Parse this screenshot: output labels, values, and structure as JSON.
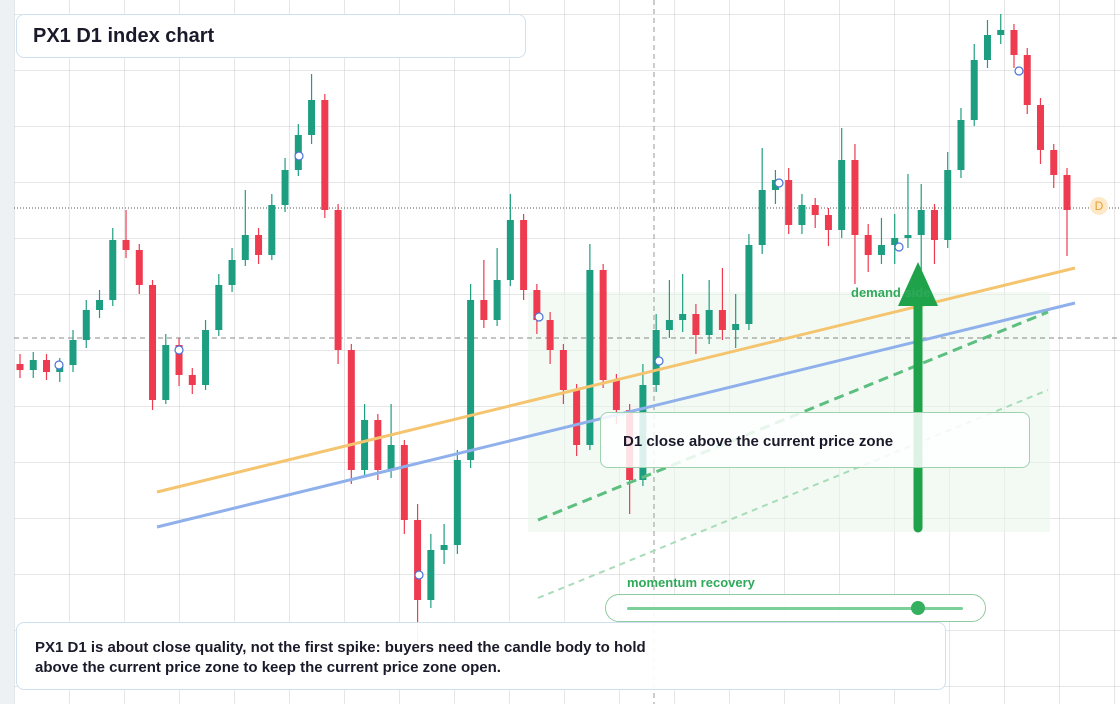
{
  "chart_data": {
    "type": "candlestick",
    "title": "PX1 D1 index chart",
    "callout": "D1 close above the current price zone",
    "zone_label": "demand side",
    "slider_label": "momentum recovery",
    "marker": "D",
    "note": "PX1 D1 is about close quality, not the first spike: buyers need the candle body to hold above the current price zone to keep the current price zone open.",
    "up_color": "#1e9e80",
    "down_color": "#ee3b50",
    "ylim": [
      0,
      704
    ],
    "candles": [
      [
        340,
        350,
        326,
        334
      ],
      [
        334,
        352,
        326,
        344
      ],
      [
        344,
        350,
        324,
        332
      ],
      [
        332,
        346,
        322,
        339
      ],
      [
        339,
        374,
        332,
        364
      ],
      [
        364,
        404,
        356,
        394
      ],
      [
        394,
        414,
        386,
        404
      ],
      [
        404,
        476,
        398,
        464
      ],
      [
        464,
        494,
        446,
        454
      ],
      [
        454,
        460,
        410,
        419
      ],
      [
        419,
        424,
        294,
        304
      ],
      [
        304,
        370,
        300,
        359
      ],
      [
        359,
        366,
        318,
        329
      ],
      [
        329,
        336,
        310,
        319
      ],
      [
        319,
        384,
        314,
        374
      ],
      [
        374,
        430,
        368,
        419
      ],
      [
        419,
        456,
        412,
        444
      ],
      [
        444,
        514,
        438,
        469
      ],
      [
        469,
        476,
        440,
        449
      ],
      [
        449,
        510,
        444,
        499
      ],
      [
        499,
        546,
        492,
        534
      ],
      [
        534,
        580,
        528,
        569
      ],
      [
        569,
        630,
        560,
        604
      ],
      [
        604,
        610,
        486,
        494
      ],
      [
        494,
        500,
        340,
        354
      ],
      [
        354,
        360,
        220,
        234
      ],
      [
        234,
        300,
        228,
        284
      ],
      [
        284,
        290,
        224,
        234
      ],
      [
        234,
        300,
        226,
        259
      ],
      [
        259,
        264,
        170,
        184
      ],
      [
        184,
        200,
        60,
        104
      ],
      [
        104,
        170,
        96,
        154
      ],
      [
        154,
        180,
        140,
        159
      ],
      [
        159,
        254,
        150,
        244
      ],
      [
        244,
        420,
        236,
        404
      ],
      [
        404,
        444,
        376,
        384
      ],
      [
        384,
        456,
        378,
        424
      ],
      [
        424,
        510,
        418,
        484
      ],
      [
        484,
        490,
        404,
        414
      ],
      [
        414,
        420,
        370,
        384
      ],
      [
        384,
        392,
        340,
        354
      ],
      [
        354,
        360,
        300,
        314
      ],
      [
        314,
        320,
        248,
        259
      ],
      [
        259,
        460,
        254,
        434
      ],
      [
        434,
        440,
        316,
        324
      ],
      [
        324,
        330,
        280,
        294
      ],
      [
        294,
        300,
        190,
        224
      ],
      [
        224,
        340,
        218,
        319
      ],
      [
        319,
        390,
        312,
        374
      ],
      [
        374,
        424,
        366,
        384
      ],
      [
        384,
        430,
        372,
        390
      ],
      [
        390,
        400,
        350,
        369
      ],
      [
        369,
        424,
        360,
        394
      ],
      [
        394,
        436,
        364,
        374
      ],
      [
        374,
        410,
        356,
        380
      ],
      [
        380,
        470,
        374,
        459
      ],
      [
        459,
        556,
        450,
        514
      ],
      [
        514,
        534,
        500,
        524
      ],
      [
        524,
        536,
        470,
        479
      ],
      [
        479,
        510,
        470,
        499
      ],
      [
        499,
        506,
        476,
        489
      ],
      [
        489,
        496,
        458,
        474
      ],
      [
        474,
        576,
        466,
        544
      ],
      [
        544,
        560,
        420,
        469
      ],
      [
        469,
        480,
        432,
        449
      ],
      [
        449,
        486,
        440,
        459
      ],
      [
        459,
        490,
        440,
        466
      ],
      [
        466,
        530,
        456,
        469
      ],
      [
        469,
        520,
        430,
        494
      ],
      [
        494,
        500,
        440,
        464
      ],
      [
        464,
        552,
        456,
        534
      ],
      [
        534,
        596,
        526,
        584
      ],
      [
        584,
        660,
        578,
        644
      ],
      [
        644,
        684,
        636,
        669
      ],
      [
        669,
        690,
        660,
        674
      ],
      [
        674,
        680,
        636,
        649
      ],
      [
        649,
        656,
        590,
        599
      ],
      [
        599,
        606,
        540,
        554
      ],
      [
        554,
        560,
        516,
        529
      ],
      [
        529,
        536,
        448,
        494
      ]
    ]
  }
}
